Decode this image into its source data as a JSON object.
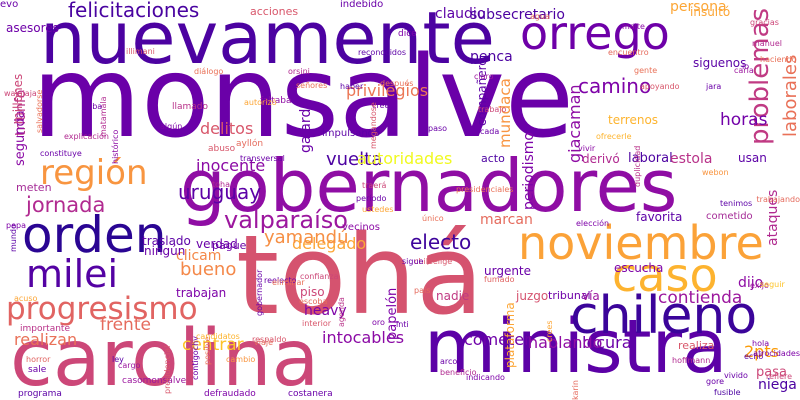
{
  "words": [
    {
      "text": "monsalve",
      "color": "#6a00a8",
      "rotate": 0
    },
    {
      "text": "nuevamente",
      "color": "#4c02a1",
      "rotate": 0
    },
    {
      "text": "gobernadores",
      "color": "#8f0da4",
      "rotate": 0
    },
    {
      "text": "tohá",
      "color": "#d5536f",
      "rotate": 0
    },
    {
      "text": "ministra",
      "color": "#5c01a6",
      "rotate": 0
    },
    {
      "text": "carolina",
      "color": "#cc4778",
      "rotate": 0
    },
    {
      "text": "chileno",
      "color": "#3b049a",
      "rotate": 0
    },
    {
      "text": "noviembre",
      "color": "#fba238",
      "rotate": 0
    },
    {
      "text": "orden",
      "color": "#2a0593",
      "rotate": 0
    },
    {
      "text": "orrego",
      "color": "#6e00a8",
      "rotate": 0
    },
    {
      "text": "caso",
      "color": "#fdb32f",
      "rotate": 0
    },
    {
      "text": "milei",
      "color": "#5402a3",
      "rotate": 0
    },
    {
      "text": "progresismo",
      "color": "#e16462",
      "rotate": 0
    },
    {
      "text": "región",
      "color": "#f89540",
      "rotate": 0
    },
    {
      "text": "valparaíso",
      "color": "#9c179e",
      "rotate": 0
    },
    {
      "text": "problemas",
      "color": "#c03a83",
      "rotate": 270
    },
    {
      "text": "felicitaciones",
      "color": "#4903a0",
      "rotate": 0
    },
    {
      "text": "jornada",
      "color": "#b12a90",
      "rotate": 0
    },
    {
      "text": "uruguay",
      "color": "#5c01a6",
      "rotate": 0
    },
    {
      "text": "camino",
      "color": "#7e03a8",
      "rotate": 0
    },
    {
      "text": "delegado",
      "color": "#fca636",
      "rotate": 0
    },
    {
      "text": "electo",
      "color": "#3e049c",
      "rotate": 0
    },
    {
      "text": "bueno",
      "color": "#f48849",
      "rotate": 0
    },
    {
      "text": "frente",
      "color": "#e56b5d",
      "rotate": 0
    },
    {
      "text": "realizan",
      "color": "#e97158",
      "rotate": 0
    },
    {
      "text": "inocente",
      "color": "#8b0aa5",
      "rotate": 0
    },
    {
      "text": "yamandú",
      "color": "#f68f44",
      "rotate": 0
    },
    {
      "text": "vuelta",
      "color": "#4c02a1",
      "rotate": 0
    },
    {
      "text": "autoridades",
      "color": "#f0f921",
      "rotate": 0
    },
    {
      "text": "delitos",
      "color": "#d8576b",
      "rotate": 0
    },
    {
      "text": "horas",
      "color": "#7201a8",
      "rotate": 0
    },
    {
      "text": "privilegios",
      "color": "#eb7655",
      "rotate": 0
    },
    {
      "text": "siguenos",
      "color": "#5a01a5",
      "rotate": 0
    },
    {
      "text": "laborales",
      "color": "#e97158",
      "rotate": 270
    },
    {
      "text": "giacaman",
      "color": "#8e0ca4",
      "rotate": 270
    },
    {
      "text": "mundaca",
      "color": "#f89441",
      "rotate": 270
    },
    {
      "text": "intocables",
      "color": "#8b0aa5",
      "rotate": 0
    },
    {
      "text": "contienda",
      "color": "#9c179e",
      "rotate": 0
    },
    {
      "text": "locura",
      "color": "#6a00a8",
      "rotate": 0
    },
    {
      "text": "hablando",
      "color": "#8f0da4",
      "rotate": 0
    },
    {
      "text": "cometer",
      "color": "#6e00a8",
      "rotate": 0
    },
    {
      "text": "asesores",
      "color": "#6e00a8",
      "rotate": 0
    },
    {
      "text": "acciones",
      "color": "#d8576b",
      "rotate": 0
    },
    {
      "text": "claudio",
      "color": "#5c01a6",
      "rotate": 0
    },
    {
      "text": "subsecretario",
      "color": "#4c02a1",
      "rotate": 0
    },
    {
      "text": "persona",
      "color": "#fca636",
      "rotate": 0
    },
    {
      "text": "terrenos",
      "color": "#fdb42f",
      "rotate": 0
    },
    {
      "text": "triunfo",
      "color": "#b83289",
      "rotate": 270
    },
    {
      "text": "segunda",
      "color": "#8b0aa5",
      "rotate": 270
    },
    {
      "text": "gajardo",
      "color": "#6a00a8",
      "rotate": 270
    },
    {
      "text": "periodismo",
      "color": "#7e03a8",
      "rotate": 270
    },
    {
      "text": "laboral",
      "color": "#4c02a1",
      "rotate": 0
    },
    {
      "text": "estola",
      "color": "#b83289",
      "rotate": 0
    },
    {
      "text": "cometido",
      "color": "#a52c97",
      "rotate": 0
    },
    {
      "text": "usan",
      "color": "#5c01a6",
      "rotate": 0
    },
    {
      "text": "derivó",
      "color": "#b12a90",
      "rotate": 0
    },
    {
      "text": "acto",
      "color": "#4c02a1",
      "rotate": 0
    },
    {
      "text": "clicam",
      "color": "#f48849",
      "rotate": 0
    },
    {
      "text": "verdad",
      "color": "#6a00a8",
      "rotate": 0
    },
    {
      "text": "ningún",
      "color": "#6a00a8",
      "rotate": 0
    },
    {
      "text": "traslado",
      "color": "#5c01a6",
      "rotate": 0
    },
    {
      "text": "urgente",
      "color": "#6a00a8",
      "rotate": 0
    },
    {
      "text": "escucha",
      "color": "#7e03a8",
      "rotate": 0
    },
    {
      "text": "dijo",
      "color": "#8e0ca4",
      "rotate": 0
    },
    {
      "text": "nadie",
      "color": "#c03a83",
      "rotate": 0
    },
    {
      "text": "tribunal",
      "color": "#6e00a8",
      "rotate": 0
    },
    {
      "text": "juzgo",
      "color": "#d5536f",
      "rotate": 0
    },
    {
      "text": "vía",
      "color": "#9c179e",
      "rotate": 0
    },
    {
      "text": "trabajan",
      "color": "#7e03a8",
      "rotate": 0
    },
    {
      "text": "piso",
      "color": "#cc4778",
      "rotate": 0
    },
    {
      "text": "heavy",
      "color": "#7e03a8",
      "rotate": 0
    },
    {
      "text": "pague",
      "color": "#6a00a8",
      "rotate": 0
    },
    {
      "text": "papelón",
      "color": "#7e03a8",
      "rotate": 270
    },
    {
      "text": "2pts",
      "color": "#fb9b06",
      "rotate": 0
    },
    {
      "text": "pasa",
      "color": "#cc4778",
      "rotate": 0
    },
    {
      "text": "niega",
      "color": "#4c02a1",
      "rotate": 0
    },
    {
      "text": "realiza",
      "color": "#d8576b",
      "rotate": 0
    },
    {
      "text": "centrar",
      "color": "#fdc328",
      "rotate": 0
    },
    {
      "text": "meten",
      "color": "#a52c97",
      "rotate": 0
    },
    {
      "text": "plataforma",
      "color": "#fca636",
      "rotate": 270
    },
    {
      "text": "indebido",
      "color": "#6a00a8",
      "rotate": 0
    },
    {
      "text": "dice",
      "color": "#7e03a8",
      "rotate": 0
    },
    {
      "text": "penca",
      "color": "#4c02a1",
      "rotate": 0
    },
    {
      "text": "compañero",
      "color": "#5c01a6",
      "rotate": 270
    },
    {
      "text": "vecinos",
      "color": "#8b0aa5",
      "rotate": 0
    },
    {
      "text": "elección",
      "color": "#7e03a8",
      "rotate": 0
    },
    {
      "text": "favorita",
      "color": "#5c01a6",
      "rotate": 0
    },
    {
      "text": "marcan",
      "color": "#e56b5d",
      "rotate": 0
    },
    {
      "text": "insultó",
      "color": "#fca636",
      "rotate": 0
    },
    {
      "text": "ataques",
      "color": "#b12a90",
      "rotate": 270
    },
    {
      "text": "millones",
      "color": "#cc4778",
      "rotate": 270
    },
    {
      "text": "impulsando",
      "color": "#5c01a6",
      "rotate": 0
    },
    {
      "text": "llamado",
      "color": "#b83289",
      "rotate": 0
    },
    {
      "text": "faltaba",
      "color": "#8f0da4",
      "rotate": 0
    },
    {
      "text": "abuso",
      "color": "#d8576b",
      "rotate": 0
    },
    {
      "text": "ayllón",
      "color": "#e56b5d",
      "rotate": 0
    },
    {
      "text": "importante",
      "color": "#b83289",
      "rotate": 0
    },
    {
      "text": "sale",
      "color": "#6a00a8",
      "rotate": 0
    },
    {
      "text": "programa",
      "color": "#5c01a6",
      "rotate": 0
    },
    {
      "text": "casomonsalve",
      "color": "#9c179e",
      "rotate": 0
    },
    {
      "text": "defraudado",
      "color": "#7e03a8",
      "rotate": 0
    },
    {
      "text": "costanera",
      "color": "#6a00a8",
      "rotate": 0
    },
    {
      "text": "hoffmann",
      "color": "#b12a90",
      "rotate": 0
    },
    {
      "text": "vivido",
      "color": "#6a00a8",
      "rotate": 0
    },
    {
      "text": "gore",
      "color": "#6a00a8",
      "rotate": 0
    },
    {
      "text": "fusible",
      "color": "#4c02a1",
      "rotate": 0
    },
    {
      "text": "echó",
      "color": "#5c01a6",
      "rotate": 0
    },
    {
      "text": "hola",
      "color": "#7e03a8",
      "rotate": 0
    },
    {
      "text": "exijo",
      "color": "#9c179e",
      "rotate": 0
    },
    {
      "text": "reelecto",
      "color": "#6a00a8",
      "rotate": 0
    },
    {
      "text": "confianza",
      "color": "#cc4778",
      "rotate": 0
    },
    {
      "text": "escoba",
      "color": "#e56b5d",
      "rotate": 0
    },
    {
      "text": "respaldo",
      "color": "#d8576b",
      "rotate": 0
    },
    {
      "text": "arco",
      "color": "#6a00a8",
      "rotate": 0
    },
    {
      "text": "beneficio",
      "color": "#b12a90",
      "rotate": 0
    },
    {
      "text": "indicando",
      "color": "#7e03a8",
      "rotate": 0
    },
    {
      "text": "presidencial",
      "color": "#d8576b",
      "rotate": 270
    },
    {
      "text": "contigochv",
      "color": "#6a00a8",
      "rotate": 270
    },
    {
      "text": "posible",
      "color": "#e97158",
      "rotate": 270
    },
    {
      "text": "candidatos",
      "color": "#fdb42f",
      "rotate": 0
    },
    {
      "text": "cambio",
      "color": "#f89540",
      "rotate": 0
    },
    {
      "text": "cargo",
      "color": "#9c179e",
      "rotate": 0
    },
    {
      "text": "ley",
      "color": "#5c01a6",
      "rotate": 0
    },
    {
      "text": "horror",
      "color": "#e16462",
      "rotate": 0
    },
    {
      "text": "acuso",
      "color": "#fca636",
      "rotate": 0
    },
    {
      "text": "mundo",
      "color": "#5c01a6",
      "rotate": 270
    },
    {
      "text": "pepa",
      "color": "#7e03a8",
      "rotate": 0
    },
    {
      "text": "constituye",
      "color": "#6a00a8",
      "rotate": 0
    },
    {
      "text": "histórico",
      "color": "#8b0aa5",
      "rotate": 270
    },
    {
      "text": "transversal",
      "color": "#6a00a8",
      "rotate": 0
    },
    {
      "text": "toha",
      "color": "#b12a90",
      "rotate": 0
    },
    {
      "text": "traerá",
      "color": "#cc4778",
      "rotate": 0
    },
    {
      "text": "período",
      "color": "#6a00a8",
      "rotate": 0
    },
    {
      "text": "ustedes",
      "color": "#fca636",
      "rotate": 0
    },
    {
      "text": "tenimos",
      "color": "#5c01a6",
      "rotate": 0
    },
    {
      "text": "trabajando",
      "color": "#e56b5d",
      "rotate": 0
    },
    {
      "text": "seguir",
      "color": "#fdc328",
      "rotate": 0
    },
    {
      "text": "atrocidades",
      "color": "#7e03a8",
      "rotate": 0
    },
    {
      "text": "refiere",
      "color": "#cc4778",
      "rotate": 0
    },
    {
      "text": "karin",
      "color": "#e56b5d",
      "rotate": 270
    },
    {
      "text": "crees",
      "color": "#fca636",
      "rotate": 270
    },
    {
      "text": "inti",
      "color": "#6a00a8",
      "rotate": 0
    },
    {
      "text": "oro",
      "color": "#7e03a8",
      "rotate": 0
    },
    {
      "text": "país",
      "color": "#e56b5d",
      "rotate": 0
    },
    {
      "text": "agenda",
      "color": "#b83289",
      "rotate": 270
    },
    {
      "text": "chileelige",
      "color": "#d8576b",
      "rotate": 0
    },
    {
      "text": "explicación",
      "color": "#b12a90",
      "rotate": 0
    },
    {
      "text": "iba",
      "color": "#6a00a8",
      "rotate": 0
    },
    {
      "text": "algún",
      "color": "#7e03a8",
      "rotate": 0
    },
    {
      "text": "diálogo",
      "color": "#e97158",
      "rotate": 0
    },
    {
      "text": "autorizó",
      "color": "#fca636",
      "rotate": 0
    },
    {
      "text": "señores",
      "color": "#e97158",
      "rotate": 0
    },
    {
      "text": "haber",
      "color": "#5c01a6",
      "rotate": 0
    },
    {
      "text": "cree",
      "color": "#6a00a8",
      "rotate": 0
    },
    {
      "text": "trabajo",
      "color": "#cc4778",
      "rotate": 0
    },
    {
      "text": "cada",
      "color": "#6a00a8",
      "rotate": 0
    },
    {
      "text": "después",
      "color": "#e97158",
      "rotate": 0
    },
    {
      "text": "claro",
      "color": "#9c179e",
      "rotate": 0
    },
    {
      "text": "paso",
      "color": "#6a00a8",
      "rotate": 0
    },
    {
      "text": "webon",
      "color": "#f89540",
      "rotate": 0
    },
    {
      "text": "duplicidad",
      "color": "#b83289",
      "rotate": 270
    },
    {
      "text": "vivir",
      "color": "#8b0aa5",
      "rotate": 0
    },
    {
      "text": "ofrecerle",
      "color": "#fdb42f",
      "rotate": 0
    },
    {
      "text": "apoyando",
      "color": "#d8576b",
      "rotate": 0
    },
    {
      "text": "jara",
      "color": "#6a00a8",
      "rotate": 0
    },
    {
      "text": "lo",
      "color": "#7e03a8",
      "rotate": 0
    },
    {
      "text": "carla",
      "color": "#9c179e",
      "rotate": 0
    },
    {
      "text": "manuel",
      "color": "#b12a90",
      "rotate": 0
    },
    {
      "text": "haciendo",
      "color": "#e97158",
      "rotate": 0
    },
    {
      "text": "gracias",
      "color": "#cc4778",
      "rotate": 0
    },
    {
      "text": "maite",
      "color": "#8b0aa5",
      "rotate": 0
    },
    {
      "text": "agua",
      "color": "#e56b5d",
      "rotate": 0
    },
    {
      "text": "reconocidos",
      "color": "#5c01a6",
      "rotate": 0
    },
    {
      "text": "orsini",
      "color": "#b12a90",
      "rotate": 0
    },
    {
      "text": "illimani",
      "color": "#d8576b",
      "rotate": 0
    },
    {
      "text": "wajajaja",
      "color": "#cc4778",
      "rotate": 0
    },
    {
      "text": "salvadorse",
      "color": "#e97158",
      "rotate": 270
    },
    {
      "text": "matamala",
      "color": "#b12a90",
      "rotate": 270
    },
    {
      "text": "megandose",
      "color": "#d8576b",
      "rotate": 270
    },
    {
      "text": "gobernador",
      "color": "#6a00a8",
      "rotate": 270
    },
    {
      "text": "eliminar",
      "color": "#e97158",
      "rotate": 0
    },
    {
      "text": "sigue",
      "color": "#6a00a8",
      "rotate": 0
    },
    {
      "text": "viaje",
      "color": "#e56b5d",
      "rotate": 0
    },
    {
      "text": "interior",
      "color": "#d8576b",
      "rotate": 0
    },
    {
      "text": "gente",
      "color": "#e97158",
      "rotate": 0
    },
    {
      "text": "encuentro",
      "color": "#e56b5d",
      "rotate": 0
    },
    {
      "text": "presidenciales",
      "color": "#e97158",
      "rotate": 0
    },
    {
      "text": "fumado",
      "color": "#e16462",
      "rotate": 0
    },
    {
      "text": "único",
      "color": "#e97158",
      "rotate": 0
    },
    {
      "text": "evo",
      "color": "#6a00a8",
      "rotate": 0
    }
  ]
}
